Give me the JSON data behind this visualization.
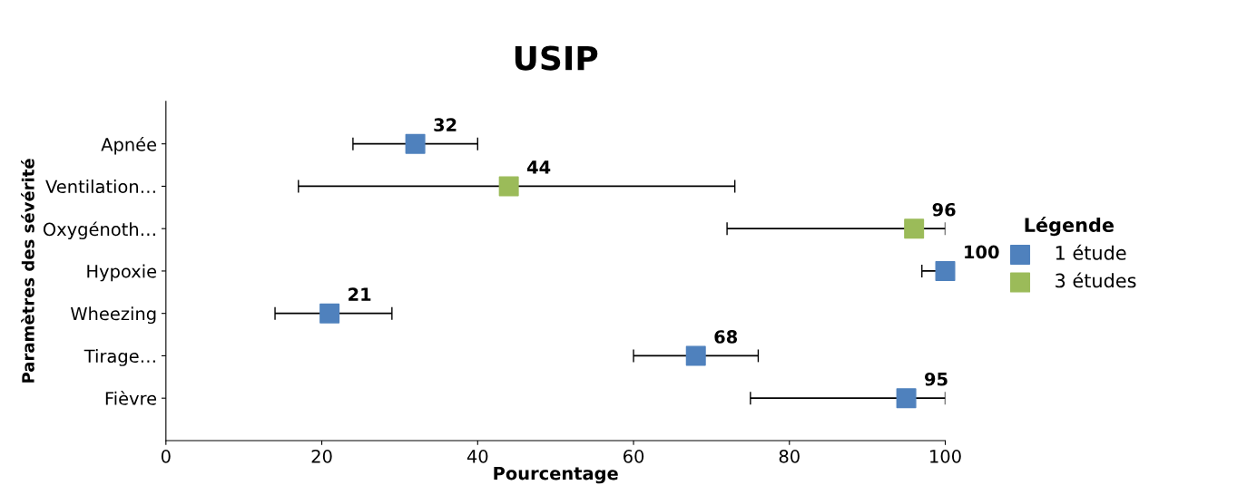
{
  "chart_data": {
    "type": "scatter",
    "title": "USIP",
    "xlabel": "Pourcentage",
    "ylabel": "Paramètres des sévérité",
    "legend_title": "Légende",
    "orientation": "horizontal",
    "categories": [
      "Apnée",
      "Ventilation…",
      "Oxygénoth…",
      "Hypoxie",
      "Wheezing",
      "Tirage…",
      "Fièvre"
    ],
    "series": [
      {
        "name": "1 étude",
        "color": "#4f81bd",
        "values": [
          32,
          null,
          null,
          100,
          21,
          68,
          95
        ],
        "errors": [
          [
            24,
            40
          ],
          null,
          null,
          [
            97,
            100
          ],
          [
            14,
            29
          ],
          [
            60,
            76
          ],
          [
            75,
            100
          ]
        ]
      },
      {
        "name": "3 études",
        "color": "#9bbb59",
        "values": [
          null,
          44,
          96,
          null,
          null,
          null,
          null
        ],
        "errors": [
          null,
          [
            17,
            73
          ],
          [
            72,
            100
          ],
          null,
          null,
          null,
          null
        ]
      }
    ],
    "xlim": [
      0,
      100
    ],
    "xticks": [
      0,
      20,
      40,
      60,
      80,
      100
    ],
    "data_labels": true,
    "marker": "square",
    "grid": false,
    "legend": "right"
  }
}
